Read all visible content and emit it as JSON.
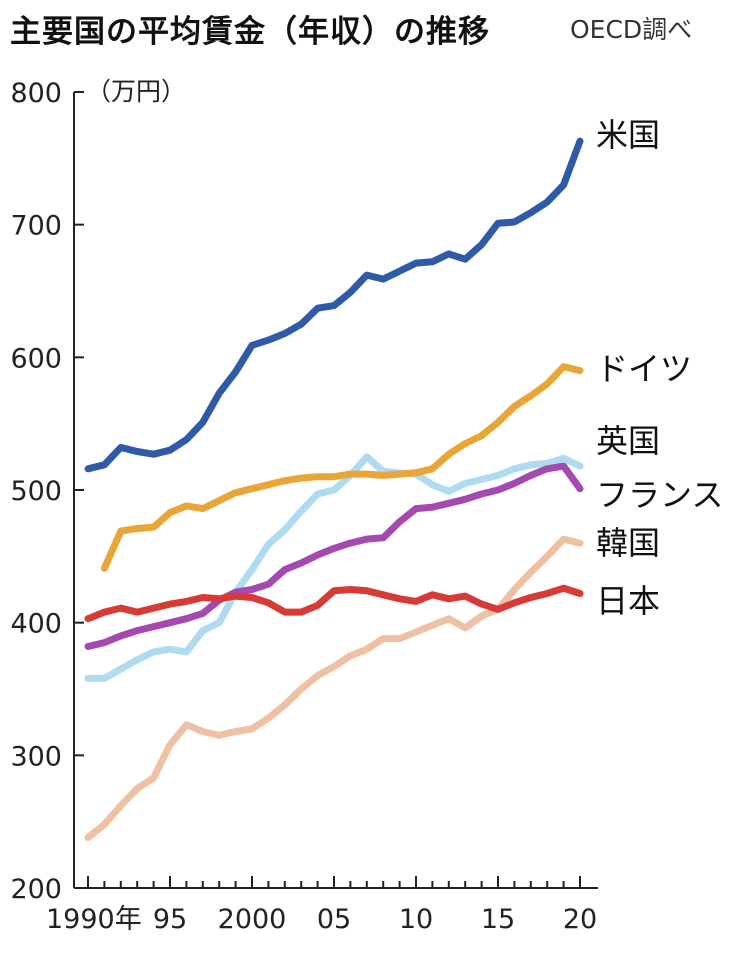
{
  "header": {
    "title": "主要国の平均賃金（年収）の推移",
    "source": "OECD調べ"
  },
  "chart_data": {
    "type": "line",
    "title": "主要国の平均賃金（年収）の推移",
    "source": "OECD調べ",
    "ylabel": "（万円）",
    "ylim": [
      200,
      800
    ],
    "yticks": [
      200,
      300,
      400,
      500,
      600,
      700,
      800
    ],
    "xlim": [
      1990,
      2020
    ],
    "xticks": [
      {
        "value": 1990,
        "label": "1990年"
      },
      {
        "value": 1995,
        "label": "95"
      },
      {
        "value": 2000,
        "label": "2000"
      },
      {
        "value": 2005,
        "label": "05"
      },
      {
        "value": 2010,
        "label": "10"
      },
      {
        "value": 2015,
        "label": "15"
      },
      {
        "value": 2020,
        "label": "20"
      }
    ],
    "grid": false,
    "legend": "direct labels at line ends (right)",
    "x": [
      1990,
      1991,
      1992,
      1993,
      1994,
      1995,
      1996,
      1997,
      1998,
      1999,
      2000,
      2001,
      2002,
      2003,
      2004,
      2005,
      2006,
      2007,
      2008,
      2009,
      2010,
      2011,
      2012,
      2013,
      2014,
      2015,
      2016,
      2017,
      2018,
      2019,
      2020
    ],
    "series": [
      {
        "name": "米国",
        "color": "#2f5aa8",
        "values": [
          516,
          519,
          532,
          529,
          527,
          530,
          538,
          551,
          573,
          589,
          609,
          613,
          618,
          625,
          637,
          639,
          649,
          662,
          659,
          665,
          671,
          672,
          678,
          674,
          685,
          701,
          702,
          709,
          717,
          730,
          763
        ]
      },
      {
        "name": "ドイツ",
        "color": "#e9a535",
        "start": 1991,
        "values": [
          null,
          441,
          469,
          471,
          472,
          483,
          488,
          486,
          492,
          498,
          501,
          504,
          507,
          509,
          510,
          510,
          512,
          512,
          511,
          512,
          513,
          516,
          527,
          535,
          541,
          551,
          563,
          571,
          580,
          593,
          590
        ]
      },
      {
        "name": "英国",
        "color": "#aedbf0",
        "values": [
          358,
          358,
          365,
          372,
          378,
          380,
          378,
          394,
          400,
          423,
          440,
          459,
          470,
          484,
          497,
          500,
          511,
          525,
          514,
          513,
          512,
          504,
          499,
          505,
          508,
          511,
          516,
          519,
          520,
          524,
          518
        ]
      },
      {
        "name": "フランス",
        "color": "#a548b0",
        "values": [
          382,
          385,
          390,
          394,
          397,
          400,
          403,
          407,
          417,
          423,
          425,
          429,
          440,
          445,
          451,
          456,
          460,
          463,
          464,
          476,
          486,
          487,
          490,
          493,
          497,
          500,
          505,
          511,
          516,
          518,
          501
        ]
      },
      {
        "name": "韓国",
        "color": "#f0c0a5",
        "values": [
          238,
          248,
          262,
          275,
          283,
          308,
          323,
          318,
          315,
          318,
          320,
          328,
          338,
          350,
          360,
          367,
          375,
          380,
          388,
          388,
          393,
          398,
          403,
          396,
          405,
          410,
          425,
          438,
          450,
          463,
          460
        ]
      },
      {
        "name": "日本",
        "color": "#d83a35",
        "values": [
          403,
          408,
          411,
          408,
          411,
          414,
          416,
          419,
          418,
          420,
          419,
          415,
          408,
          408,
          413,
          424,
          425,
          424,
          421,
          418,
          416,
          421,
          418,
          420,
          414,
          410,
          415,
          419,
          422,
          426,
          422
        ]
      }
    ]
  }
}
